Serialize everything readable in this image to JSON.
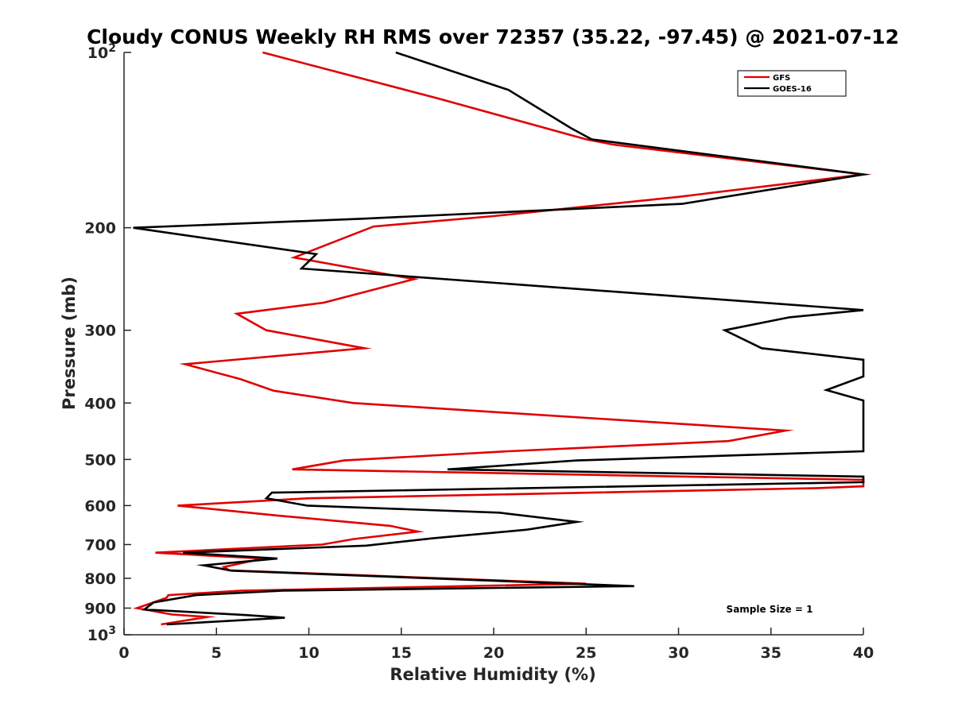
{
  "chart_data": {
    "type": "line",
    "title": "Cloudy CONUS Weekly RH RMS over 72357 (35.22, -97.45) @ 2021-07-12",
    "xlabel": "Relative Humidity (%)",
    "ylabel": "Pressure (mb)",
    "xlim": [
      0,
      40
    ],
    "ylim": [
      100,
      1000
    ],
    "y_scale": "log",
    "y_reversed": true,
    "grid": false,
    "legend_position": "top-right",
    "x_ticks": [
      0,
      5,
      10,
      15,
      20,
      25,
      30,
      35,
      40
    ],
    "x_tick_labels": [
      "0",
      "5",
      "10",
      "15",
      "20",
      "25",
      "30",
      "35",
      "40"
    ],
    "y_ticks": [
      100,
      200,
      300,
      400,
      500,
      600,
      700,
      800,
      900,
      1000
    ],
    "y_tick_labels": [
      {
        "text": "10",
        "sup": "2"
      },
      {
        "text": "200",
        "sup": ""
      },
      {
        "text": "300",
        "sup": ""
      },
      {
        "text": "400",
        "sup": ""
      },
      {
        "text": "500",
        "sup": ""
      },
      {
        "text": "600",
        "sup": ""
      },
      {
        "text": "700",
        "sup": ""
      },
      {
        "text": "800",
        "sup": ""
      },
      {
        "text": "900",
        "sup": ""
      },
      {
        "text": "10",
        "sup": "3"
      }
    ],
    "annotation": "Sample Size = 1",
    "series": [
      {
        "name": "GFS",
        "color": "#e00000",
        "points": [
          [
            7.5,
            100
          ],
          [
            17,
            120
          ],
          [
            25,
            141
          ],
          [
            26.5,
            144
          ],
          [
            40,
            162
          ],
          [
            30,
            177
          ],
          [
            20,
            191
          ],
          [
            13.5,
            199
          ],
          [
            9.2,
            225
          ],
          [
            15.7,
            245
          ],
          [
            10.8,
            269
          ],
          [
            6.1,
            281
          ],
          [
            7.7,
            300
          ],
          [
            13.0,
            322
          ],
          [
            3.3,
            343
          ],
          [
            6.3,
            364
          ],
          [
            8.1,
            381
          ],
          [
            12.4,
            400
          ],
          [
            35.8,
            446
          ],
          [
            32.7,
            465
          ],
          [
            20.8,
            484
          ],
          [
            11.9,
            502
          ],
          [
            9.1,
            520
          ],
          [
            40,
            542
          ],
          [
            40,
            556
          ],
          [
            37.5,
            560
          ],
          [
            10.0,
            583
          ],
          [
            2.9,
            600
          ],
          [
            8.3,
            624
          ],
          [
            14.4,
            650
          ],
          [
            15.9,
            665
          ],
          [
            12.4,
            685
          ],
          [
            10.7,
            700
          ],
          [
            1.7,
            723
          ],
          [
            7.5,
            740
          ],
          [
            5.4,
            765
          ],
          [
            5.7,
            775
          ],
          [
            25.0,
            817
          ],
          [
            6.3,
            840
          ],
          [
            2.4,
            855
          ],
          [
            2.3,
            864
          ],
          [
            0.7,
            900
          ],
          [
            2.6,
            923
          ],
          [
            4.5,
            932
          ],
          [
            2.0,
            960
          ]
        ]
      },
      {
        "name": "GOES-16",
        "color": "#000000",
        "points": [
          [
            14.7,
            100
          ],
          [
            20.8,
            116
          ],
          [
            24.2,
            135
          ],
          [
            25.3,
            141
          ],
          [
            40,
            162
          ],
          [
            30.2,
            182
          ],
          [
            12.9,
            193
          ],
          [
            0.5,
            200
          ],
          [
            10.4,
            222
          ],
          [
            9.6,
            235
          ],
          [
            40,
            277
          ],
          [
            36.0,
            285
          ],
          [
            32.5,
            300
          ],
          [
            34.5,
            322
          ],
          [
            40,
            337
          ],
          [
            40,
            360
          ],
          [
            38.0,
            380
          ],
          [
            40,
            396
          ],
          [
            40,
            484
          ],
          [
            24.5,
            502
          ],
          [
            17.5,
            520
          ],
          [
            40,
            535
          ],
          [
            40,
            547
          ],
          [
            8.0,
            570
          ],
          [
            7.7,
            583
          ],
          [
            9.9,
            600
          ],
          [
            20.3,
            617
          ],
          [
            24.5,
            640
          ],
          [
            21.8,
            660
          ],
          [
            16.7,
            683
          ],
          [
            13.1,
            703
          ],
          [
            3.2,
            723
          ],
          [
            8.3,
            740
          ],
          [
            4.3,
            760
          ],
          [
            5.8,
            776
          ],
          [
            27.6,
            825
          ],
          [
            8.6,
            840
          ],
          [
            3.9,
            855
          ],
          [
            1.6,
            880
          ],
          [
            1.1,
            905
          ],
          [
            6.6,
            925
          ],
          [
            8.7,
            935
          ],
          [
            2.3,
            960
          ]
        ]
      }
    ]
  }
}
